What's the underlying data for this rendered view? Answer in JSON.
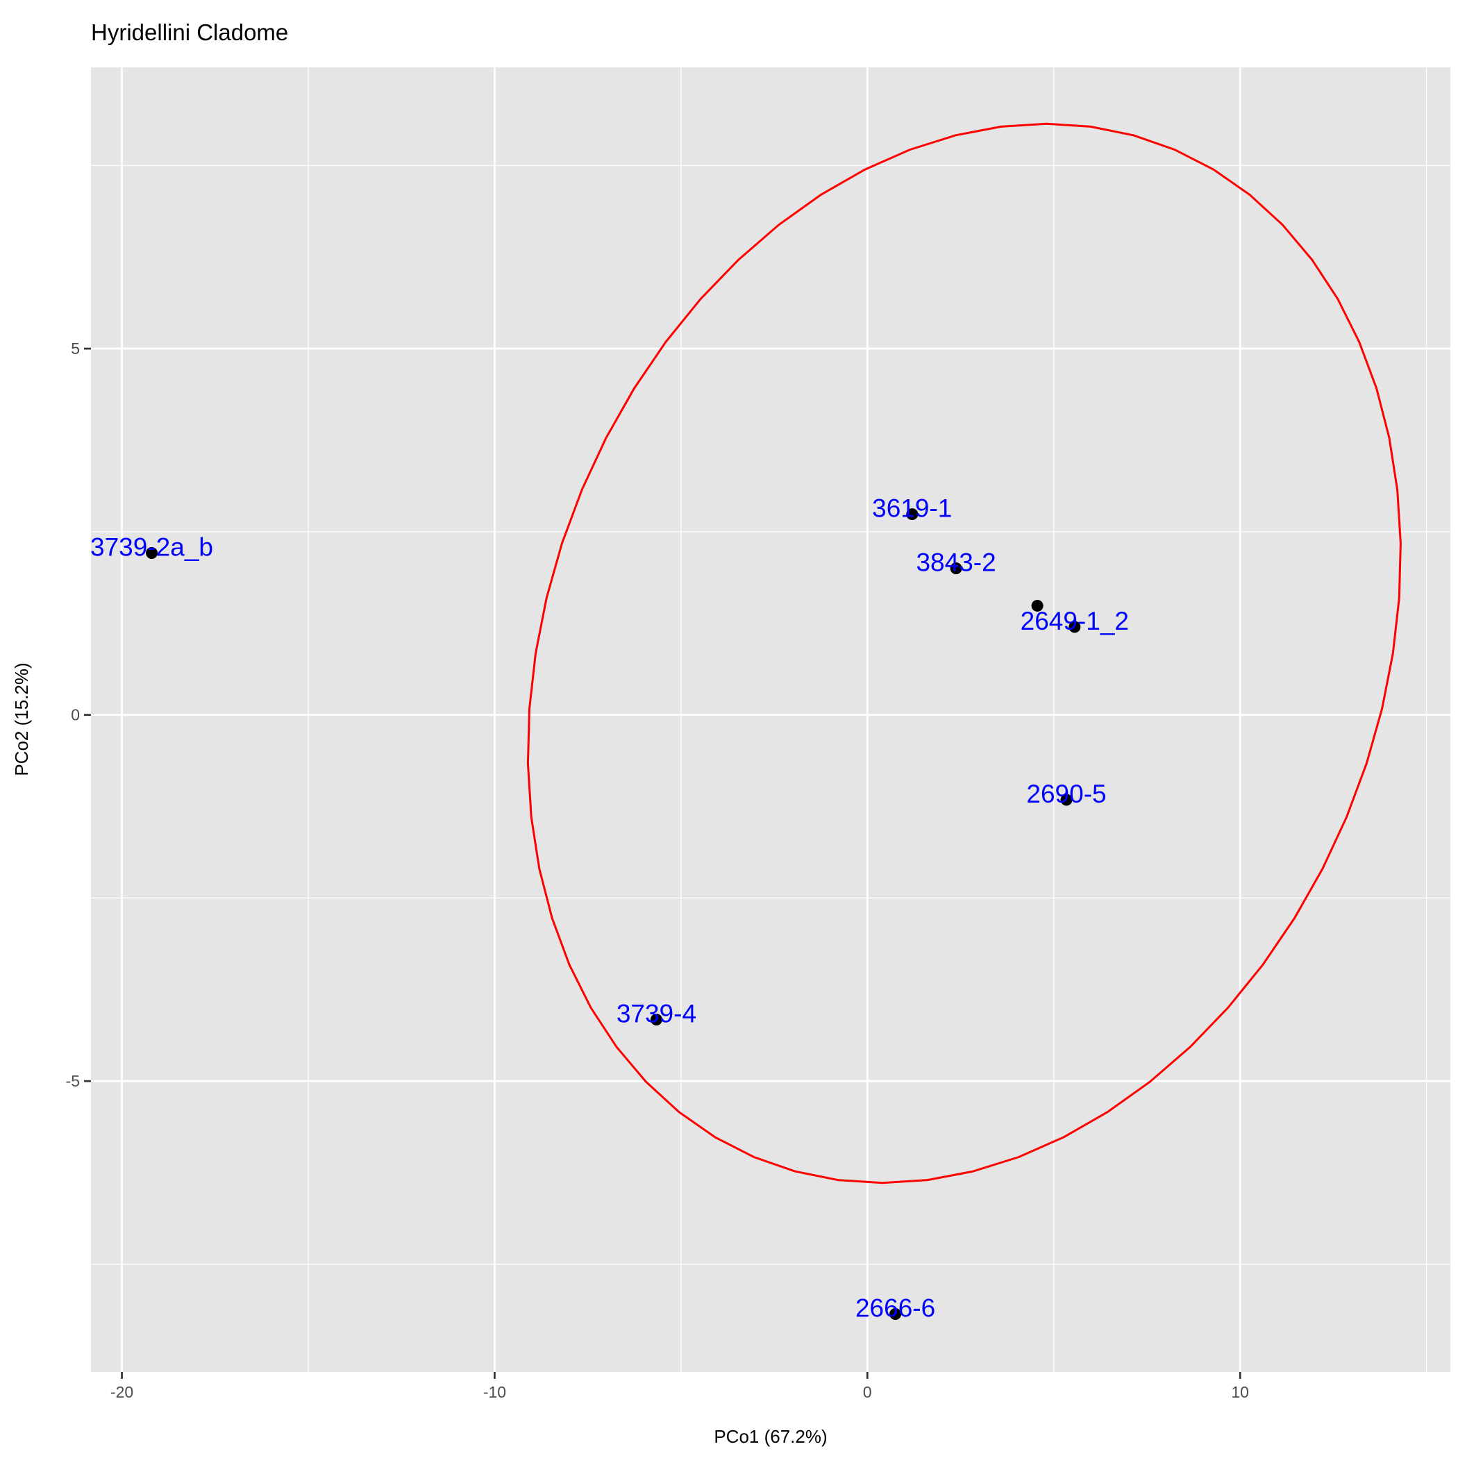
{
  "chart_data": {
    "type": "scatter",
    "title": "Hyridellini Cladome",
    "xlabel": "PCo1 (67.2%)",
    "ylabel": "PCo2 (15.2%)",
    "xlim": [
      -20.83,
      15.64
    ],
    "ylim": [
      -8.97,
      8.84
    ],
    "x_ticks": [
      -20,
      -10,
      0,
      10
    ],
    "x_tick_labels": [
      "-20",
      "-10",
      "0",
      "10"
    ],
    "y_ticks": [
      -5,
      0,
      5
    ],
    "y_tick_labels": [
      "-5",
      "0",
      "5"
    ],
    "grid": true,
    "points": [
      {
        "label": "3739-2a_b",
        "x": -19.2,
        "y": 2.21
      },
      {
        "label": "3619-1",
        "x": 1.2,
        "y": 2.74
      },
      {
        "label": "3843-2",
        "x": 2.38,
        "y": 2.0
      },
      {
        "label": "",
        "x": 4.56,
        "y": 1.49
      },
      {
        "label": "2649-1_2",
        "x": 5.56,
        "y": 1.2
      },
      {
        "label": "2690-5",
        "x": 5.34,
        "y": -1.16
      },
      {
        "label": "3739-4",
        "x": -5.66,
        "y": -4.16
      },
      {
        "label": "2666-6",
        "x": 0.75,
        "y": -8.18
      }
    ],
    "ellipse": {
      "cx": 2.6,
      "cy": 0.84,
      "a": 11.5,
      "b": 2.2,
      "ry": 7.23,
      "color": "#ff0000"
    },
    "colors": {
      "panel": "#e5e5e5",
      "grid": "#ffffff",
      "label": "#0000ff",
      "point": "#000000"
    }
  }
}
